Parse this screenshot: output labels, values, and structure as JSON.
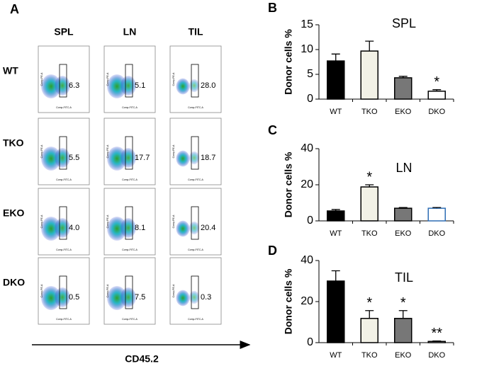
{
  "panel_a": {
    "panel_label": "A",
    "columns": [
      "SPL",
      "LN",
      "TIL"
    ],
    "rows": [
      "WT",
      "TKO",
      "EKO",
      "DKO"
    ],
    "plot_x_label": "Comp-FITC-A",
    "plot_y_label": "Comp-PE-A",
    "gate_values": [
      [
        "6.3",
        "5.1",
        "28.0"
      ],
      [
        "5.5",
        "17.7",
        "18.7"
      ],
      [
        "4.0",
        "8.1",
        "20.4"
      ],
      [
        "0.5",
        "7.5",
        "0.3"
      ]
    ],
    "x_axis_label": "CD45.2"
  },
  "chart_data": [
    {
      "type": "bar",
      "panel_label": "B",
      "title": "SPL",
      "y_label": "Donor cells %",
      "categories": [
        "WT",
        "TKO",
        "EKO",
        "DKO"
      ],
      "values": [
        7.7,
        9.7,
        4.3,
        1.6
      ],
      "errors": [
        1.4,
        2.0,
        0.3,
        0.3
      ],
      "colors": [
        "#000000",
        "#f2f1e6",
        "#777777",
        "#ffffff"
      ],
      "edge_colors": [
        "#000000",
        "#000000",
        "#000000",
        "#000000"
      ],
      "value_annotations": [
        null,
        null,
        null,
        "*"
      ],
      "ylim": [
        0,
        15
      ],
      "yticks": [
        0,
        5,
        10,
        15
      ]
    },
    {
      "type": "bar",
      "panel_label": "C",
      "title": "LN",
      "y_label": "Donor cells %",
      "categories": [
        "WT",
        "TKO",
        "EKO",
        "DKO"
      ],
      "values": [
        5.5,
        18.8,
        7.0,
        7.0
      ],
      "errors": [
        0.8,
        1.2,
        0.4,
        0.4
      ],
      "colors": [
        "#000000",
        "#f2f1e6",
        "#777777",
        "#ffffff"
      ],
      "edge_colors": [
        "#000000",
        "#000000",
        "#000000",
        "#2e6db4"
      ],
      "value_annotations": [
        null,
        "*",
        null,
        null
      ],
      "ylim": [
        0,
        40
      ],
      "yticks": [
        0,
        20,
        40
      ]
    },
    {
      "type": "bar",
      "panel_label": "D",
      "title": "TIL",
      "y_label": "Donor cells %",
      "categories": [
        "WT",
        "TKO",
        "EKO",
        "DKO"
      ],
      "values": [
        30.0,
        11.8,
        11.8,
        0.6
      ],
      "errors": [
        5.0,
        3.8,
        3.8,
        0.2
      ],
      "colors": [
        "#000000",
        "#f2f1e6",
        "#777777",
        "#ffffff"
      ],
      "edge_colors": [
        "#000000",
        "#000000",
        "#000000",
        "#000000"
      ],
      "value_annotations": [
        null,
        "*",
        "*",
        "**"
      ],
      "ylim": [
        0,
        40
      ],
      "yticks": [
        0,
        20,
        40
      ]
    }
  ]
}
